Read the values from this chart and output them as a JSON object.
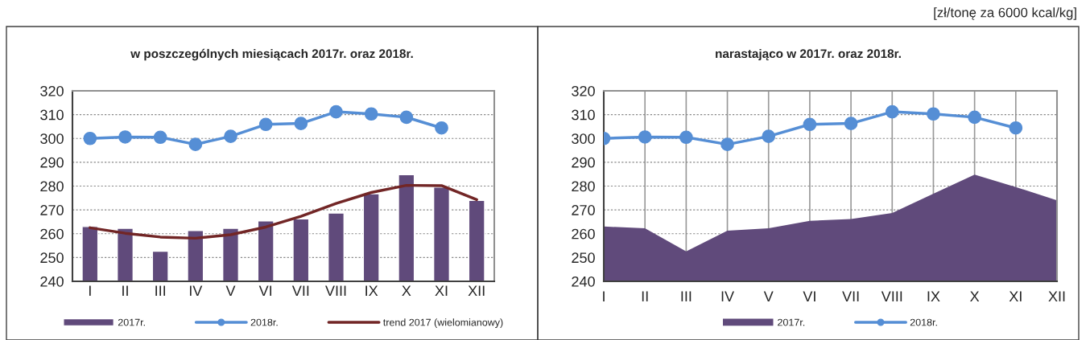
{
  "chart_data": [
    {
      "type": "bar",
      "title": "w poszczególnych miesiącach 2017r. oraz 2018r.",
      "categories": [
        "I",
        "II",
        "III",
        "IV",
        "V",
        "VI",
        "VII",
        "VIII",
        "IX",
        "X",
        "XI",
        "XII"
      ],
      "ylim": [
        240,
        320
      ],
      "yticks": [
        240,
        250,
        260,
        270,
        280,
        290,
        300,
        310,
        320
      ],
      "grid": "y",
      "legend": "bottom",
      "series": [
        {
          "name": "2017r.",
          "type": "bar",
          "color": "#604a7b",
          "values": [
            263.0,
            262.3,
            252.6,
            261.3,
            262.3,
            265.4,
            266.2,
            268.7,
            276.8,
            284.8,
            279.6,
            274.0
          ]
        },
        {
          "name": "2018r.",
          "type": "line",
          "color": "#558ed5",
          "marker": "circle",
          "values": [
            300.0,
            300.6,
            300.5,
            297.5,
            300.9,
            305.9,
            306.3,
            311.2,
            310.3,
            308.9,
            304.4,
            null
          ]
        },
        {
          "name": "trend 2017 (wielomianowy)",
          "type": "line",
          "color": "#722626",
          "marker": "none",
          "values": [
            262.5,
            260.2,
            258.6,
            258.1,
            259.6,
            262.8,
            267.3,
            272.7,
            277.3,
            280.3,
            280.2,
            274.3
          ]
        }
      ]
    },
    {
      "type": "area",
      "title": "narastająco w 2017r. oraz 2018r.",
      "annotations": [
        "[zł/tonę za 6000 kcal/kg]"
      ],
      "categories": [
        "I",
        "II",
        "III",
        "IV",
        "V",
        "VI",
        "VII",
        "VIII",
        "IX",
        "X",
        "XI",
        "XII"
      ],
      "ylim": [
        240,
        320
      ],
      "yticks": [
        240,
        250,
        260,
        270,
        280,
        290,
        300,
        310,
        320
      ],
      "grid": true,
      "legend": "bottom",
      "series": [
        {
          "name": "2017r.",
          "type": "area",
          "color": "#604a7b",
          "values": [
            263.0,
            262.3,
            252.6,
            261.3,
            262.3,
            265.4,
            266.2,
            268.7,
            276.8,
            284.8,
            279.6,
            274.0
          ]
        },
        {
          "name": "2018r.",
          "type": "line",
          "color": "#558ed5",
          "marker": "circle",
          "values": [
            300.0,
            300.6,
            300.5,
            297.5,
            300.9,
            305.9,
            306.3,
            311.2,
            310.3,
            308.9,
            304.4,
            null
          ]
        }
      ]
    }
  ]
}
